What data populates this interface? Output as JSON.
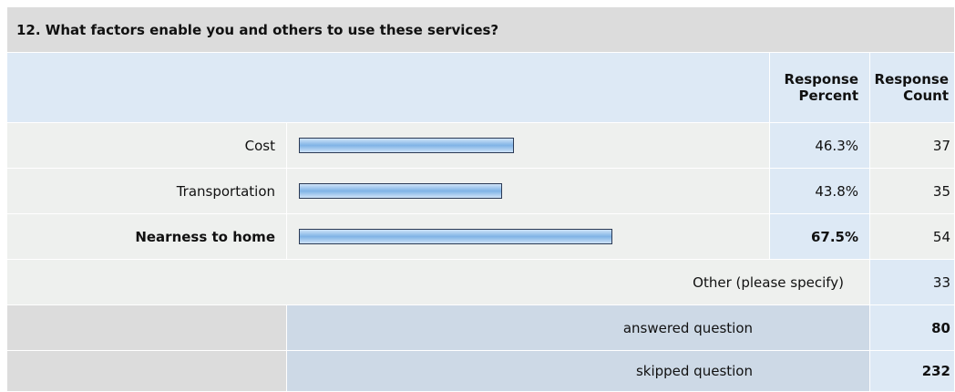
{
  "title": "12. What factors enable you and others to use these services?",
  "header": {
    "percent": "Response Percent",
    "count": "Response Count"
  },
  "rows": [
    {
      "label": "Cost",
      "percent": 46.3,
      "percent_label": "46.3%",
      "count": 37
    },
    {
      "label": "Transportation",
      "percent": 43.8,
      "percent_label": "43.8%",
      "count": 35
    },
    {
      "label": "Nearness to home",
      "percent": 67.5,
      "percent_label": "67.5%",
      "count": 54,
      "bold": true
    }
  ],
  "other": {
    "label": "Other (please specify)",
    "count": 33
  },
  "answered": {
    "label": "answered question",
    "count": 80
  },
  "skipped": {
    "label": "skipped question",
    "count": 232
  }
}
